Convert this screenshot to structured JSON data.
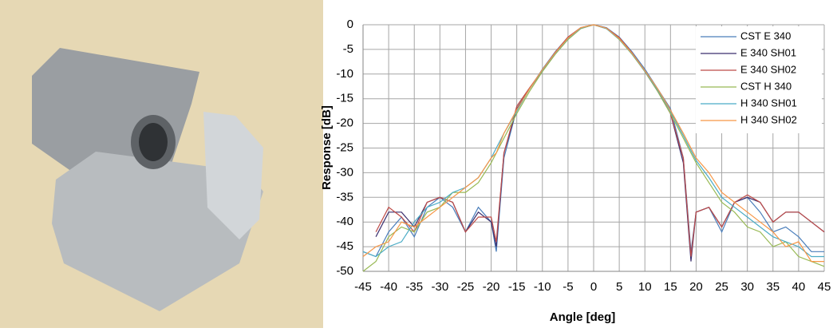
{
  "chart_data": {
    "type": "line",
    "xlabel": "Angle [deg]",
    "ylabel": "Response [dB]",
    "x": [
      -45,
      -42.5,
      -40,
      -37.5,
      -35,
      -32.5,
      -30,
      -27.5,
      -25,
      -22.5,
      -20,
      -19,
      -17.5,
      -15,
      -12.5,
      -10,
      -7.5,
      -5,
      -2.5,
      0,
      2.5,
      5,
      7.5,
      10,
      12.5,
      15,
      17.5,
      19,
      20,
      22.5,
      25,
      27.5,
      30,
      32.5,
      35,
      37.5,
      40,
      42.5,
      45
    ],
    "series": [
      {
        "name": "CST E 340",
        "color": "#4a7ebb",
        "values": [
          -46,
          -47,
          -42,
          -39,
          -43,
          -37,
          -35,
          -37,
          -42,
          -37,
          -40,
          -46,
          -27,
          -17,
          -13,
          -9,
          -5.5,
          -2.5,
          -0.6,
          0,
          -0.6,
          -2.5,
          -5.5,
          -9,
          -13,
          -17,
          -27,
          -46,
          -38,
          -37,
          -42,
          -36,
          -35,
          -38,
          -42,
          -41,
          -43,
          -46,
          -46
        ]
      },
      {
        "name": "E 340 SH01",
        "color": "#3b2f6e",
        "values": [
          null,
          -43,
          -38,
          -38,
          -41,
          -36,
          -35,
          -36,
          -42,
          -38,
          -40,
          -45,
          -26,
          -17,
          -13,
          -9.3,
          -5.7,
          -2.6,
          -0.7,
          0,
          -0.7,
          -2.7,
          -5.8,
          -9.5,
          -13.5,
          -18,
          -28,
          -48,
          -38,
          -37,
          -41,
          -36,
          -35,
          -36,
          -40,
          -38,
          -38,
          -40,
          -42
        ]
      },
      {
        "name": "E 340 SH02",
        "color": "#be4b48",
        "values": [
          null,
          -42,
          -37,
          -39,
          -42,
          -36,
          -35,
          -36,
          -42,
          -39,
          -39,
          -44,
          -26,
          -16.5,
          -12.8,
          -9.2,
          -5.6,
          -2.5,
          -0.6,
          0,
          -0.7,
          -2.6,
          -5.7,
          -9.4,
          -13.4,
          -18,
          -27,
          -47,
          -38,
          -37,
          -41,
          -36,
          -34.5,
          -36,
          -40,
          -38,
          -38,
          -40,
          -42
        ]
      },
      {
        "name": "CST H 340",
        "color": "#98b954",
        "values": [
          -50,
          -48,
          -43,
          -41,
          -42,
          -38,
          -37,
          -34,
          -34,
          -32,
          -28,
          -26,
          -23,
          -18,
          -13.5,
          -9.5,
          -6,
          -3,
          -0.8,
          0,
          -0.8,
          -3,
          -6,
          -9.5,
          -13.5,
          -18,
          -23,
          -26,
          -28,
          -32,
          -36,
          -38,
          -41,
          -42,
          -45,
          -44,
          -47,
          -48,
          -49
        ]
      },
      {
        "name": "H 340 SH01",
        "color": "#4bacc6",
        "values": [
          -46,
          -47,
          -45,
          -44,
          -40,
          -37,
          -36,
          -34,
          -33,
          -31,
          -27,
          -25,
          -22,
          -17.5,
          -13,
          -9.2,
          -5.8,
          -2.8,
          -0.7,
          0,
          -0.8,
          -2.9,
          -5.9,
          -9.4,
          -13.2,
          -17.5,
          -22.5,
          -25.5,
          -27.5,
          -31,
          -35,
          -37,
          -39,
          -41,
          -43,
          -44,
          -45,
          -47,
          -47
        ]
      },
      {
        "name": "H 340 SH02",
        "color": "#f79646",
        "values": [
          -47,
          -45,
          -44,
          -40,
          -41,
          -39,
          -37,
          -35,
          -33,
          -31,
          -27,
          -26,
          -22,
          -17.2,
          -13,
          -9.1,
          -5.7,
          -2.7,
          -0.6,
          0,
          -0.7,
          -2.8,
          -5.8,
          -9.3,
          -13,
          -17.3,
          -22,
          -25,
          -27,
          -30,
          -34,
          -36,
          -38,
          -40,
          -42,
          -45,
          -44,
          -48,
          -48
        ]
      }
    ],
    "xlim": [
      -45,
      45
    ],
    "xticks": [
      -45,
      -40,
      -35,
      -30,
      -25,
      -20,
      -15,
      -10,
      -5,
      0,
      5,
      10,
      15,
      20,
      25,
      30,
      35,
      40,
      45
    ],
    "ylim": [
      -50,
      0
    ],
    "yticks": [
      0,
      -5,
      -10,
      -15,
      -20,
      -25,
      -30,
      -35,
      -40,
      -45,
      -50
    ],
    "grid": true,
    "legend": "upper right"
  }
}
